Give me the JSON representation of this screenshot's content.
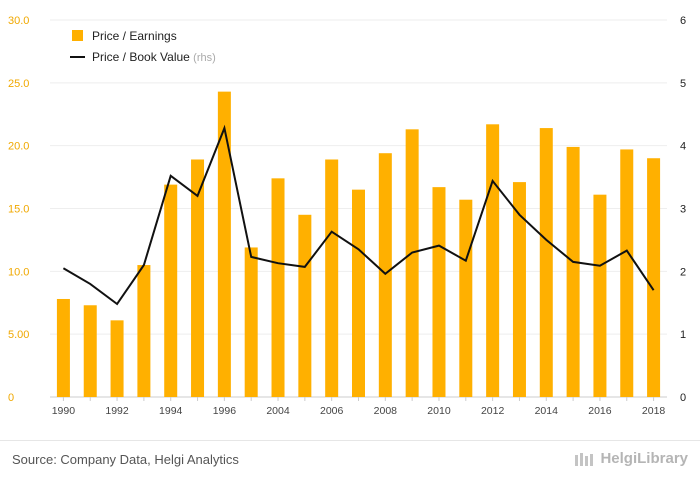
{
  "chart_data": {
    "type": "bar",
    "categories": [
      "1990",
      "1991",
      "1992",
      "1993",
      "1994",
      "1995",
      "1996",
      "1997",
      "2004",
      "2005",
      "2006",
      "2007",
      "2008",
      "2009",
      "2010",
      "2011",
      "2012",
      "2013",
      "2014",
      "2015",
      "2016",
      "2017",
      "2018"
    ],
    "x_tick_labels": [
      "1990",
      "",
      "1992",
      "",
      "1994",
      "",
      "1996",
      "",
      "2004",
      "",
      "2006",
      "",
      "2008",
      "",
      "2010",
      "",
      "2012",
      "",
      "2014",
      "",
      "2016",
      "",
      "2018"
    ],
    "series": [
      {
        "name": "Price / Earnings",
        "type": "bar",
        "axis": "left",
        "color": "#FFB000",
        "values": [
          7.8,
          7.3,
          6.1,
          10.5,
          16.9,
          18.9,
          24.3,
          11.9,
          17.4,
          14.5,
          18.9,
          16.5,
          19.4,
          21.3,
          16.7,
          15.7,
          21.7,
          17.1,
          21.4,
          19.9,
          16.1,
          19.7,
          19.0
        ]
      },
      {
        "name": "Price / Book Value",
        "name_suffix": "(rhs)",
        "type": "line",
        "axis": "right",
        "color": "#111111",
        "values": [
          2.05,
          1.8,
          1.48,
          2.1,
          3.52,
          3.2,
          4.28,
          2.23,
          2.13,
          2.07,
          2.63,
          2.35,
          1.96,
          2.3,
          2.41,
          2.17,
          3.44,
          2.9,
          2.5,
          2.15,
          2.09,
          2.33,
          1.7
        ]
      }
    ],
    "y_left": {
      "lim": [
        0,
        30
      ],
      "ticks": [
        "0",
        "5.00",
        "10.0",
        "15.0",
        "20.0",
        "25.0",
        "30.0"
      ],
      "color": "#F0A800"
    },
    "y_right": {
      "lim": [
        0,
        6
      ],
      "ticks": [
        "0",
        "1",
        "2",
        "3",
        "4",
        "5",
        "6"
      ],
      "color": "#222222"
    },
    "grid": "horizontal",
    "legend": "top-left",
    "title": "",
    "xlabel": "",
    "ylabel": ""
  },
  "footer": {
    "source": "Source: Company Data, Helgi Analytics",
    "brand": "HelgiLibrary"
  }
}
